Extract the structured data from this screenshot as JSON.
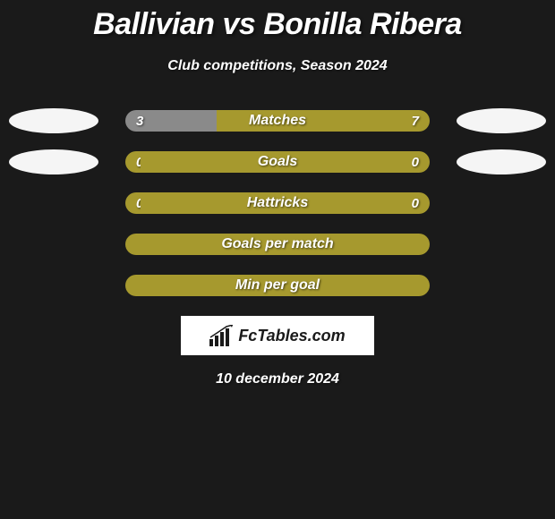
{
  "title": "Ballivian vs Bonilla Ribera",
  "subtitle": "Club competitions, Season 2024",
  "date": "10 december 2024",
  "brand": "FcTables.com",
  "colors": {
    "background": "#1a1a1a",
    "text": "#ffffff",
    "barPrimary": "#a6992e",
    "barSecondary": "#8a8a8a",
    "badge": "#f5f5f5"
  },
  "stats": [
    {
      "label": "Matches",
      "left_value": "3",
      "right_value": "7",
      "left_pct": 30,
      "left_color": "#8a8a8a",
      "right_color": "#a6992e",
      "show_values": true,
      "show_left_badge": true,
      "show_right_badge": true
    },
    {
      "label": "Goals",
      "left_value": "0",
      "right_value": "0",
      "left_pct": 5,
      "left_color": "#a6992e",
      "right_color": "#a6992e",
      "show_values": true,
      "show_left_badge": true,
      "show_right_badge": true
    },
    {
      "label": "Hattricks",
      "left_value": "0",
      "right_value": "0",
      "left_pct": 5,
      "left_color": "#a6992e",
      "right_color": "#a6992e",
      "show_values": true,
      "show_left_badge": false,
      "show_right_badge": false
    },
    {
      "label": "Goals per match",
      "full_bar": true,
      "color": "#a6992e",
      "show_left_badge": false,
      "show_right_badge": false
    },
    {
      "label": "Min per goal",
      "full_bar": true,
      "color": "#a6992e",
      "show_left_badge": false,
      "show_right_badge": false
    }
  ]
}
